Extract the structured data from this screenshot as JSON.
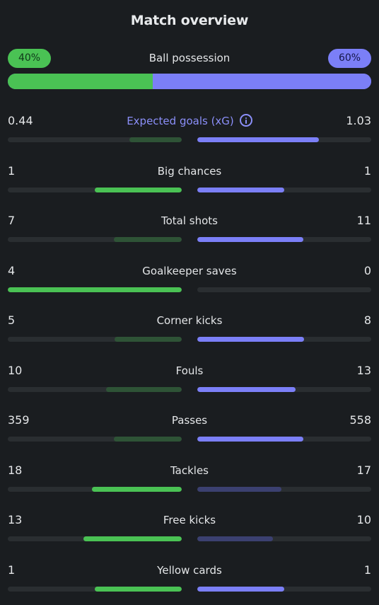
{
  "header": {
    "title": "Match overview"
  },
  "possession": {
    "label": "Ball possession",
    "home": "40%",
    "away": "60%",
    "home_fraction": 0.4,
    "away_fraction": 0.6
  },
  "colors": {
    "home": "#4ac254",
    "away": "#7b7ff7",
    "track": "#2a2e31"
  },
  "stats": [
    {
      "label": "Expected goals (xG)",
      "home": "0.44",
      "away": "1.03",
      "home_num": 0.44,
      "away_num": 1.03,
      "info_icon": true
    },
    {
      "label": "Big chances",
      "home": "1",
      "away": "1",
      "home_num": 1,
      "away_num": 1
    },
    {
      "label": "Total shots",
      "home": "7",
      "away": "11",
      "home_num": 7,
      "away_num": 11
    },
    {
      "label": "Goalkeeper saves",
      "home": "4",
      "away": "0",
      "home_num": 4,
      "away_num": 0
    },
    {
      "label": "Corner kicks",
      "home": "5",
      "away": "8",
      "home_num": 5,
      "away_num": 8
    },
    {
      "label": "Fouls",
      "home": "10",
      "away": "13",
      "home_num": 10,
      "away_num": 13
    },
    {
      "label": "Passes",
      "home": "359",
      "away": "558",
      "home_num": 359,
      "away_num": 558
    },
    {
      "label": "Tackles",
      "home": "18",
      "away": "17",
      "home_num": 18,
      "away_num": 17
    },
    {
      "label": "Free kicks",
      "home": "13",
      "away": "10",
      "home_num": 13,
      "away_num": 10
    },
    {
      "label": "Yellow cards",
      "home": "1",
      "away": "1",
      "home_num": 1,
      "away_num": 1
    }
  ]
}
